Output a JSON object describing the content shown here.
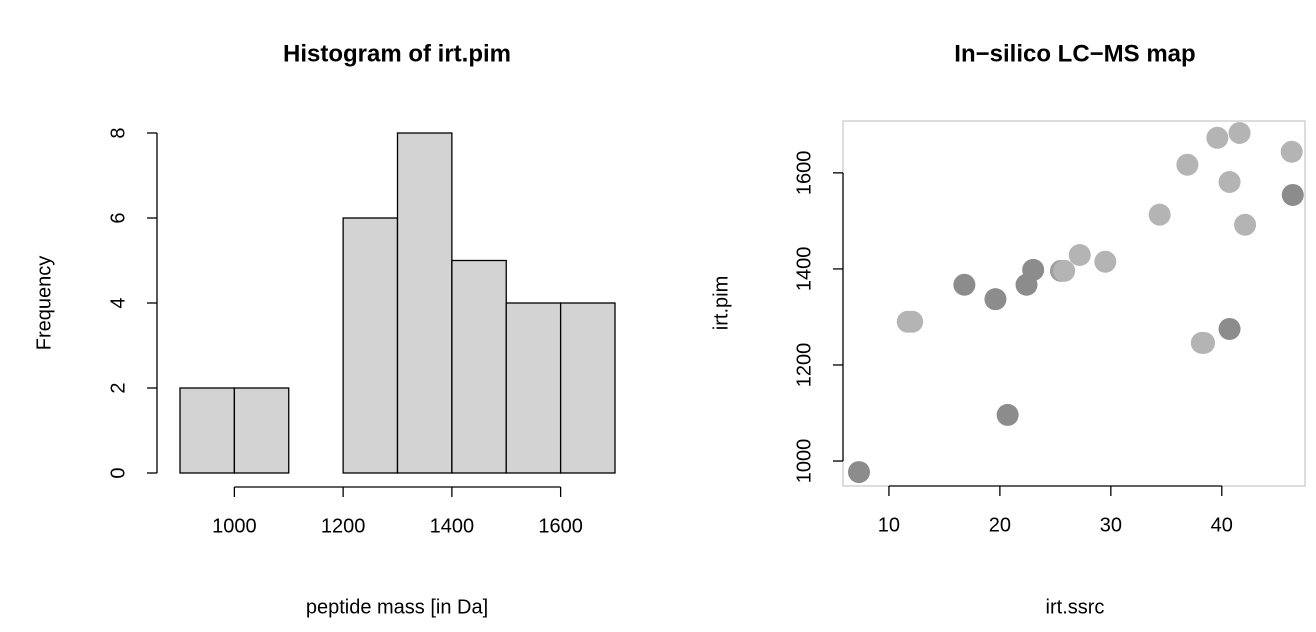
{
  "chart_data": [
    {
      "type": "histogram",
      "title": "Histogram of irt.pim",
      "xlabel": "peptide mass [in Da]",
      "ylabel": "Frequency",
      "bins": [
        900,
        1000,
        1100,
        1200,
        1300,
        1400,
        1500,
        1600,
        1700
      ],
      "values": [
        2,
        2,
        0,
        6,
        8,
        5,
        4,
        4
      ],
      "color": "#d3d3d3",
      "xlim": [
        900,
        1700
      ],
      "ylim": [
        0,
        8
      ],
      "xticks": [
        1000,
        1200,
        1400,
        1600
      ],
      "yticks": [
        0,
        2,
        4,
        6,
        8
      ]
    },
    {
      "type": "scatter",
      "title": "In−silico LC−MS map",
      "xlabel": "irt.ssrc",
      "ylabel": "irt.pim",
      "x": [
        7.3,
        11.7,
        12.1,
        16.8,
        19.6,
        20.7,
        22.4,
        23.0,
        25.5,
        25.8,
        27.2,
        29.5,
        34.4,
        36.9,
        38.2,
        38.4,
        39.6,
        40.7,
        40.7,
        41.6,
        42.1,
        46.3,
        46.4
      ],
      "values": [
        977,
        1290,
        1290,
        1367,
        1337,
        1096,
        1367,
        1398,
        1396,
        1396,
        1429,
        1415,
        1513,
        1617,
        1246,
        1246,
        1673,
        1275,
        1581,
        1683,
        1492,
        1644,
        1554
      ],
      "colors": [
        "#8c8c8c",
        "#b4b4b4",
        "#b4b4b4",
        "#8c8c8c",
        "#8c8c8c",
        "#8c8c8c",
        "#8c8c8c",
        "#8c8c8c",
        "#a0a0a0",
        "#b4b4b4",
        "#b4b4b4",
        "#b4b4b4",
        "#b4b4b4",
        "#b4b4b4",
        "#b4b4b4",
        "#b4b4b4",
        "#b4b4b4",
        "#8c8c8c",
        "#b4b4b4",
        "#b4b4b4",
        "#b4b4b4",
        "#b4b4b4",
        "#8c8c8c"
      ],
      "xlim": [
        5.86,
        47.5
      ],
      "ylim": [
        948,
        1708
      ],
      "xticks": [
        10,
        20,
        30,
        40
      ],
      "yticks": [
        1000,
        1200,
        1400,
        1600
      ]
    }
  ]
}
